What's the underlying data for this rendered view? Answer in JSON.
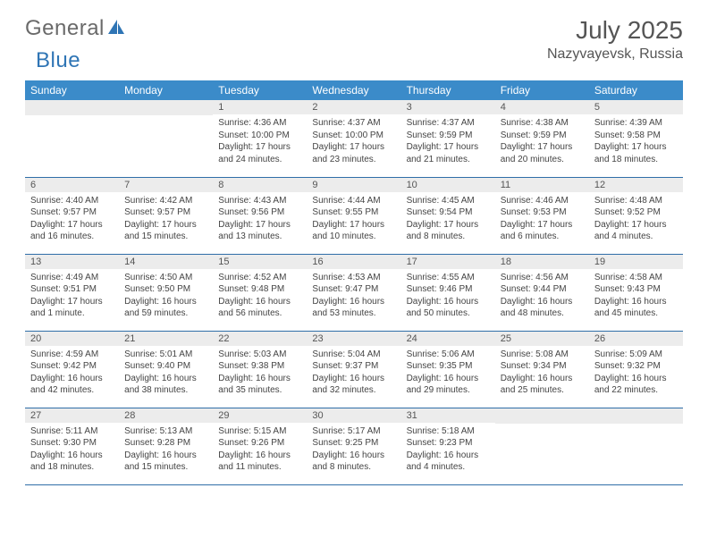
{
  "brand": {
    "name1": "General",
    "name2": "Blue"
  },
  "title": {
    "month": "July 2025",
    "location": "Nazyvayevsk, Russia"
  },
  "colors": {
    "header_bg": "#3b8bc9",
    "header_text": "#ffffff",
    "daynum_bg": "#ececec",
    "rule": "#2f6ea8"
  },
  "weekdays": [
    "Sunday",
    "Monday",
    "Tuesday",
    "Wednesday",
    "Thursday",
    "Friday",
    "Saturday"
  ],
  "grid": [
    [
      {
        "n": "",
        "sr": "",
        "ss": "",
        "dl": ""
      },
      {
        "n": "",
        "sr": "",
        "ss": "",
        "dl": ""
      },
      {
        "n": "1",
        "sr": "Sunrise: 4:36 AM",
        "ss": "Sunset: 10:00 PM",
        "dl": "Daylight: 17 hours and 24 minutes."
      },
      {
        "n": "2",
        "sr": "Sunrise: 4:37 AM",
        "ss": "Sunset: 10:00 PM",
        "dl": "Daylight: 17 hours and 23 minutes."
      },
      {
        "n": "3",
        "sr": "Sunrise: 4:37 AM",
        "ss": "Sunset: 9:59 PM",
        "dl": "Daylight: 17 hours and 21 minutes."
      },
      {
        "n": "4",
        "sr": "Sunrise: 4:38 AM",
        "ss": "Sunset: 9:59 PM",
        "dl": "Daylight: 17 hours and 20 minutes."
      },
      {
        "n": "5",
        "sr": "Sunrise: 4:39 AM",
        "ss": "Sunset: 9:58 PM",
        "dl": "Daylight: 17 hours and 18 minutes."
      }
    ],
    [
      {
        "n": "6",
        "sr": "Sunrise: 4:40 AM",
        "ss": "Sunset: 9:57 PM",
        "dl": "Daylight: 17 hours and 16 minutes."
      },
      {
        "n": "7",
        "sr": "Sunrise: 4:42 AM",
        "ss": "Sunset: 9:57 PM",
        "dl": "Daylight: 17 hours and 15 minutes."
      },
      {
        "n": "8",
        "sr": "Sunrise: 4:43 AM",
        "ss": "Sunset: 9:56 PM",
        "dl": "Daylight: 17 hours and 13 minutes."
      },
      {
        "n": "9",
        "sr": "Sunrise: 4:44 AM",
        "ss": "Sunset: 9:55 PM",
        "dl": "Daylight: 17 hours and 10 minutes."
      },
      {
        "n": "10",
        "sr": "Sunrise: 4:45 AM",
        "ss": "Sunset: 9:54 PM",
        "dl": "Daylight: 17 hours and 8 minutes."
      },
      {
        "n": "11",
        "sr": "Sunrise: 4:46 AM",
        "ss": "Sunset: 9:53 PM",
        "dl": "Daylight: 17 hours and 6 minutes."
      },
      {
        "n": "12",
        "sr": "Sunrise: 4:48 AM",
        "ss": "Sunset: 9:52 PM",
        "dl": "Daylight: 17 hours and 4 minutes."
      }
    ],
    [
      {
        "n": "13",
        "sr": "Sunrise: 4:49 AM",
        "ss": "Sunset: 9:51 PM",
        "dl": "Daylight: 17 hours and 1 minute."
      },
      {
        "n": "14",
        "sr": "Sunrise: 4:50 AM",
        "ss": "Sunset: 9:50 PM",
        "dl": "Daylight: 16 hours and 59 minutes."
      },
      {
        "n": "15",
        "sr": "Sunrise: 4:52 AM",
        "ss": "Sunset: 9:48 PM",
        "dl": "Daylight: 16 hours and 56 minutes."
      },
      {
        "n": "16",
        "sr": "Sunrise: 4:53 AM",
        "ss": "Sunset: 9:47 PM",
        "dl": "Daylight: 16 hours and 53 minutes."
      },
      {
        "n": "17",
        "sr": "Sunrise: 4:55 AM",
        "ss": "Sunset: 9:46 PM",
        "dl": "Daylight: 16 hours and 50 minutes."
      },
      {
        "n": "18",
        "sr": "Sunrise: 4:56 AM",
        "ss": "Sunset: 9:44 PM",
        "dl": "Daylight: 16 hours and 48 minutes."
      },
      {
        "n": "19",
        "sr": "Sunrise: 4:58 AM",
        "ss": "Sunset: 9:43 PM",
        "dl": "Daylight: 16 hours and 45 minutes."
      }
    ],
    [
      {
        "n": "20",
        "sr": "Sunrise: 4:59 AM",
        "ss": "Sunset: 9:42 PM",
        "dl": "Daylight: 16 hours and 42 minutes."
      },
      {
        "n": "21",
        "sr": "Sunrise: 5:01 AM",
        "ss": "Sunset: 9:40 PM",
        "dl": "Daylight: 16 hours and 38 minutes."
      },
      {
        "n": "22",
        "sr": "Sunrise: 5:03 AM",
        "ss": "Sunset: 9:38 PM",
        "dl": "Daylight: 16 hours and 35 minutes."
      },
      {
        "n": "23",
        "sr": "Sunrise: 5:04 AM",
        "ss": "Sunset: 9:37 PM",
        "dl": "Daylight: 16 hours and 32 minutes."
      },
      {
        "n": "24",
        "sr": "Sunrise: 5:06 AM",
        "ss": "Sunset: 9:35 PM",
        "dl": "Daylight: 16 hours and 29 minutes."
      },
      {
        "n": "25",
        "sr": "Sunrise: 5:08 AM",
        "ss": "Sunset: 9:34 PM",
        "dl": "Daylight: 16 hours and 25 minutes."
      },
      {
        "n": "26",
        "sr": "Sunrise: 5:09 AM",
        "ss": "Sunset: 9:32 PM",
        "dl": "Daylight: 16 hours and 22 minutes."
      }
    ],
    [
      {
        "n": "27",
        "sr": "Sunrise: 5:11 AM",
        "ss": "Sunset: 9:30 PM",
        "dl": "Daylight: 16 hours and 18 minutes."
      },
      {
        "n": "28",
        "sr": "Sunrise: 5:13 AM",
        "ss": "Sunset: 9:28 PM",
        "dl": "Daylight: 16 hours and 15 minutes."
      },
      {
        "n": "29",
        "sr": "Sunrise: 5:15 AM",
        "ss": "Sunset: 9:26 PM",
        "dl": "Daylight: 16 hours and 11 minutes."
      },
      {
        "n": "30",
        "sr": "Sunrise: 5:17 AM",
        "ss": "Sunset: 9:25 PM",
        "dl": "Daylight: 16 hours and 8 minutes."
      },
      {
        "n": "31",
        "sr": "Sunrise: 5:18 AM",
        "ss": "Sunset: 9:23 PM",
        "dl": "Daylight: 16 hours and 4 minutes."
      },
      {
        "n": "",
        "sr": "",
        "ss": "",
        "dl": ""
      },
      {
        "n": "",
        "sr": "",
        "ss": "",
        "dl": ""
      }
    ]
  ]
}
